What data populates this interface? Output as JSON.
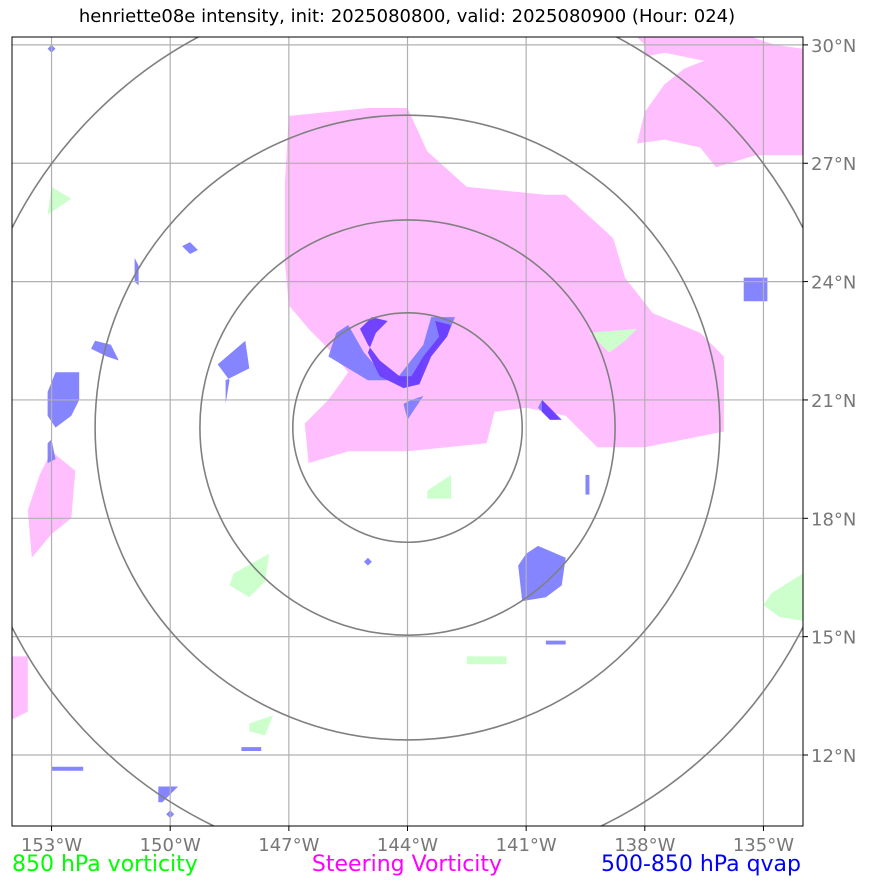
{
  "title": "henriette08e intensity, init: 2025080800, valid: 2025080900 (Hour: 024)",
  "map": {
    "lon_range": [
      -154,
      -134
    ],
    "lat_range": [
      10.2,
      30.2
    ],
    "lon_ticks": [
      {
        "value": -153,
        "label": "153°W"
      },
      {
        "value": -150,
        "label": "150°W"
      },
      {
        "value": -147,
        "label": "147°W"
      },
      {
        "value": -144,
        "label": "144°W"
      },
      {
        "value": -141,
        "label": "141°W"
      },
      {
        "value": -138,
        "label": "138°W"
      },
      {
        "value": -135,
        "label": "135°W"
      }
    ],
    "lat_ticks": [
      {
        "value": 12,
        "label": "12°N"
      },
      {
        "value": 15,
        "label": "15°N"
      },
      {
        "value": 18,
        "label": "18°N"
      },
      {
        "value": 21,
        "label": "21°N"
      },
      {
        "value": 24,
        "label": "24°N"
      },
      {
        "value": 27,
        "label": "27°N"
      },
      {
        "value": 30,
        "label": "30°N"
      }
    ],
    "grid": true,
    "storm_center": {
      "lon": -144.0,
      "lat": 20.3
    },
    "range_ring_radii_deg": [
      2.9,
      5.25,
      7.9,
      11.2
    ],
    "colors": {
      "grid": "#b0b0b0",
      "rings": "#808080",
      "tick_text": "#777777",
      "vort850": "#ccffcc",
      "steering": "#ffbfff",
      "qvap": "#7b7bff",
      "qvap_dark": "#6a3cff"
    },
    "regions": {
      "steering": [
        [
          [
            -147.0,
            28.2
          ],
          [
            -145.0,
            28.4
          ],
          [
            -144.0,
            28.4
          ],
          [
            -143.5,
            27.3
          ],
          [
            -142.5,
            26.4
          ],
          [
            -140.5,
            26.2
          ],
          [
            -140.0,
            26.2
          ],
          [
            -138.8,
            25.1
          ],
          [
            -138.5,
            24.1
          ],
          [
            -137.8,
            23.2
          ],
          [
            -136.6,
            22.7
          ],
          [
            -136.0,
            22.1
          ],
          [
            -136.0,
            20.2
          ],
          [
            -138.0,
            19.8
          ],
          [
            -139.2,
            19.8
          ],
          [
            -140.0,
            20.6
          ],
          [
            -141.0,
            20.8
          ],
          [
            -141.8,
            20.7
          ],
          [
            -142.0,
            19.9
          ],
          [
            -144.0,
            19.7
          ],
          [
            -145.5,
            19.7
          ],
          [
            -146.5,
            19.4
          ],
          [
            -146.6,
            20.4
          ],
          [
            -146.0,
            21.0
          ],
          [
            -145.5,
            21.7
          ],
          [
            -146.0,
            22.3
          ],
          [
            -146.5,
            22.8
          ],
          [
            -147.0,
            23.4
          ],
          [
            -147.1,
            24.5
          ],
          [
            -147.1,
            26.5
          ]
        ],
        [
          [
            -138.2,
            30.2
          ],
          [
            -135.3,
            30.2
          ],
          [
            -134.7,
            30.0
          ],
          [
            -134.0,
            29.9
          ],
          [
            -134.0,
            27.2
          ],
          [
            -135.2,
            27.2
          ],
          [
            -136.2,
            26.9
          ],
          [
            -136.6,
            27.4
          ],
          [
            -137.5,
            27.6
          ],
          [
            -138.2,
            27.5
          ],
          [
            -138.0,
            28.3
          ],
          [
            -137.5,
            29.0
          ],
          [
            -137.0,
            29.4
          ],
          [
            -136.5,
            29.6
          ],
          [
            -137.5,
            29.8
          ],
          [
            -138.0,
            29.7
          ],
          [
            -138.0,
            30.0
          ]
        ],
        [
          [
            -153.0,
            19.7
          ],
          [
            -152.4,
            19.2
          ],
          [
            -152.5,
            18.0
          ],
          [
            -153.0,
            17.6
          ],
          [
            -153.5,
            17.0
          ],
          [
            -153.6,
            18.2
          ],
          [
            -153.3,
            19.1
          ]
        ],
        [
          [
            -154.0,
            14.5
          ],
          [
            -153.6,
            14.5
          ],
          [
            -153.6,
            13.1
          ],
          [
            -154.0,
            12.9
          ]
        ]
      ],
      "vort850": [
        [
          [
            -139.4,
            22.7
          ],
          [
            -138.2,
            22.8
          ],
          [
            -138.5,
            22.5
          ],
          [
            -138.9,
            22.2
          ]
        ],
        [
          [
            -153.0,
            26.4
          ],
          [
            -152.5,
            26.1
          ],
          [
            -152.8,
            25.9
          ],
          [
            -153.1,
            25.7
          ]
        ],
        [
          [
            -148.4,
            16.6
          ],
          [
            -147.5,
            17.1
          ],
          [
            -147.6,
            16.4
          ],
          [
            -148.0,
            16.0
          ],
          [
            -148.5,
            16.3
          ]
        ],
        [
          [
            -134.8,
            16.1
          ],
          [
            -134.0,
            16.6
          ],
          [
            -134.0,
            15.4
          ],
          [
            -134.6,
            15.5
          ],
          [
            -135.0,
            15.8
          ]
        ],
        [
          [
            -143.5,
            18.7
          ],
          [
            -142.9,
            19.1
          ],
          [
            -142.9,
            18.5
          ],
          [
            -143.5,
            18.5
          ]
        ],
        [
          [
            -142.5,
            14.5
          ],
          [
            -141.5,
            14.5
          ],
          [
            -141.5,
            14.3
          ],
          [
            -142.5,
            14.3
          ]
        ],
        [
          [
            -148.0,
            12.8
          ],
          [
            -147.4,
            13.0
          ],
          [
            -147.6,
            12.5
          ],
          [
            -148.0,
            12.6
          ]
        ]
      ],
      "qvap": [
        [
          [
            -152.9,
            21.7
          ],
          [
            -152.3,
            21.7
          ],
          [
            -152.3,
            21.0
          ],
          [
            -152.5,
            20.6
          ],
          [
            -152.9,
            20.3
          ],
          [
            -153.1,
            20.6
          ],
          [
            -153.1,
            21.2
          ]
        ],
        [
          [
            -153.0,
            20.0
          ],
          [
            -152.9,
            19.5
          ],
          [
            -153.1,
            19.4
          ],
          [
            -153.1,
            19.9
          ]
        ],
        [
          [
            -151.9,
            22.5
          ],
          [
            -151.5,
            22.4
          ],
          [
            -151.3,
            22.0
          ],
          [
            -151.6,
            22.1
          ],
          [
            -152.0,
            22.3
          ]
        ],
        [
          [
            -148.1,
            22.5
          ],
          [
            -148.0,
            21.8
          ],
          [
            -148.6,
            21.5
          ],
          [
            -148.6,
            20.9
          ],
          [
            -148.5,
            21.5
          ],
          [
            -148.8,
            21.9
          ]
        ],
        [
          [
            -145.5,
            22.9
          ],
          [
            -145.1,
            22.2
          ],
          [
            -144.5,
            21.5
          ],
          [
            -145.0,
            21.5
          ],
          [
            -145.5,
            21.8
          ],
          [
            -146.0,
            22.1
          ],
          [
            -145.8,
            22.7
          ]
        ],
        [
          [
            -143.4,
            23.1
          ],
          [
            -142.8,
            23.1
          ],
          [
            -143.0,
            22.6
          ],
          [
            -143.6,
            22.0
          ],
          [
            -143.7,
            21.4
          ],
          [
            -144.3,
            21.5
          ],
          [
            -143.6,
            22.4
          ]
        ],
        [
          [
            -143.9,
            21.0
          ],
          [
            -143.6,
            21.1
          ],
          [
            -144.0,
            20.5
          ],
          [
            -144.1,
            20.9
          ]
        ],
        [
          [
            -140.6,
            21.0
          ],
          [
            -140.2,
            20.5
          ],
          [
            -140.4,
            20.5
          ],
          [
            -140.7,
            20.8
          ]
        ],
        [
          [
            -140.7,
            17.3
          ],
          [
            -140.0,
            17.0
          ],
          [
            -140.1,
            16.3
          ],
          [
            -140.5,
            16.0
          ],
          [
            -141.1,
            15.9
          ],
          [
            -141.2,
            16.8
          ],
          [
            -141.0,
            17.1
          ]
        ],
        [
          [
            -150.9,
            24.6
          ],
          [
            -150.9,
            24.0
          ],
          [
            -150.8,
            23.9
          ],
          [
            -150.8,
            24.4
          ]
        ],
        [
          [
            -149.5,
            25.0
          ],
          [
            -149.3,
            24.8
          ],
          [
            -149.5,
            24.7
          ],
          [
            -149.7,
            24.9
          ]
        ],
        [
          [
            -135.5,
            24.1
          ],
          [
            -134.9,
            24.1
          ],
          [
            -134.9,
            23.5
          ],
          [
            -135.5,
            23.5
          ]
        ],
        [
          [
            -139.5,
            19.1
          ],
          [
            -139.4,
            19.1
          ],
          [
            -139.4,
            18.6
          ],
          [
            -139.5,
            18.6
          ]
        ],
        [
          [
            -150.3,
            11.2
          ],
          [
            -149.8,
            11.2
          ],
          [
            -150.2,
            10.8
          ],
          [
            -150.3,
            10.8
          ]
        ],
        [
          [
            -153.0,
            11.7
          ],
          [
            -152.2,
            11.7
          ],
          [
            -152.2,
            11.6
          ],
          [
            -153.0,
            11.6
          ]
        ],
        [
          [
            -148.2,
            12.2
          ],
          [
            -147.7,
            12.2
          ],
          [
            -147.7,
            12.1
          ],
          [
            -148.2,
            12.1
          ]
        ],
        [
          [
            -140.5,
            14.9
          ],
          [
            -140.0,
            14.9
          ],
          [
            -140.0,
            14.8
          ],
          [
            -140.5,
            14.8
          ]
        ],
        [
          [
            -153.0,
            30.0
          ],
          [
            -152.9,
            29.9
          ],
          [
            -153.0,
            29.8
          ],
          [
            -153.1,
            29.9
          ]
        ],
        [
          [
            -145.0,
            17.0
          ],
          [
            -144.9,
            16.9
          ],
          [
            -145.0,
            16.8
          ],
          [
            -145.1,
            16.9
          ]
        ],
        [
          [
            -150.0,
            10.6
          ],
          [
            -149.9,
            10.5
          ],
          [
            -150.0,
            10.4
          ],
          [
            -150.1,
            10.5
          ]
        ]
      ],
      "qvap_dark": [
        [
          [
            -144.9,
            23.1
          ],
          [
            -144.5,
            23.0
          ],
          [
            -144.8,
            22.7
          ],
          [
            -145.0,
            22.2
          ],
          [
            -144.7,
            21.6
          ],
          [
            -144.1,
            21.3
          ],
          [
            -143.7,
            21.4
          ],
          [
            -143.4,
            22.1
          ],
          [
            -143.0,
            22.6
          ],
          [
            -142.9,
            22.9
          ],
          [
            -143.3,
            23.0
          ],
          [
            -143.2,
            22.6
          ],
          [
            -143.6,
            22.1
          ],
          [
            -143.9,
            21.6
          ],
          [
            -144.2,
            21.6
          ],
          [
            -144.7,
            22.0
          ],
          [
            -145.0,
            22.4
          ],
          [
            -145.2,
            22.8
          ]
        ],
        [
          [
            -140.6,
            21.0
          ],
          [
            -140.1,
            20.5
          ],
          [
            -140.4,
            20.5
          ],
          [
            -140.6,
            20.7
          ]
        ]
      ]
    }
  },
  "legend": [
    {
      "label": "850 hPa vorticity",
      "color": "#00ff00"
    },
    {
      "label": "Steering Vorticity",
      "color": "#ff00ff"
    },
    {
      "label": "500-850 hPa qvap",
      "color": "#0000ff"
    }
  ]
}
